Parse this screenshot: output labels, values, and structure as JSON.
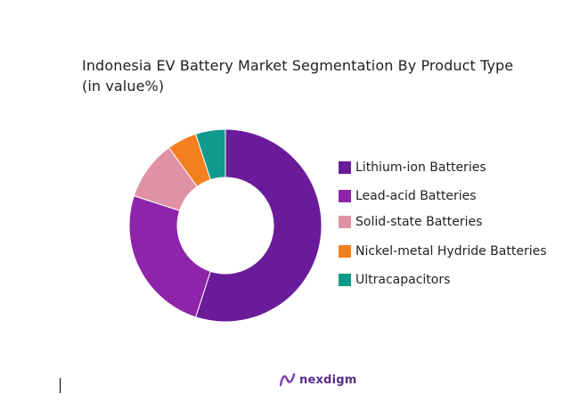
{
  "chart_data": {
    "type": "pie",
    "title": "Indonesia EV Battery Market Segmentation By Product Type",
    "subtitle": "(in value%)",
    "donut": true,
    "legend_position": "right",
    "slices": [
      {
        "label": "Lithium-ion Batteries",
        "value": 55,
        "color": "#6a1b9a"
      },
      {
        "label": "Lead-acid Batteries",
        "value": 25,
        "color": "#8e24aa"
      },
      {
        "label": "Solid-state Batteries",
        "value": 10,
        "color": "#e091a6"
      },
      {
        "label": "Nickel-metal Hydride Batteries",
        "value": 5,
        "color": "#f47f1f"
      },
      {
        "label": "Ultracapacitors",
        "value": 5,
        "color": "#0e9a8c"
      }
    ]
  },
  "brand": {
    "name": "nexdigm",
    "icon": "nexdigm-logo-icon"
  }
}
